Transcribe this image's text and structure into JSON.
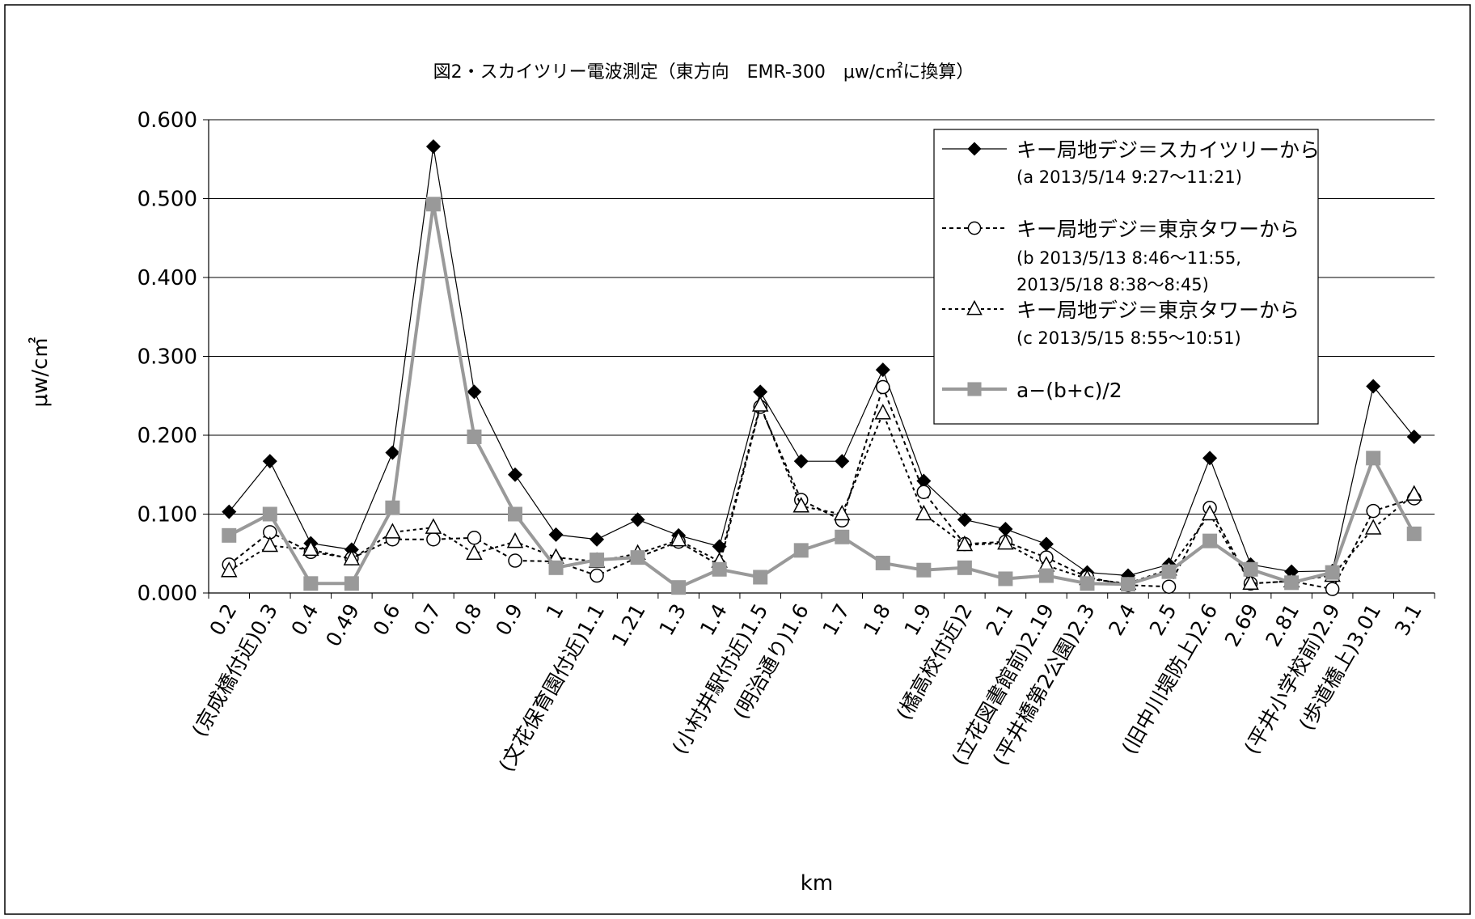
{
  "chart_data": {
    "type": "line",
    "title": "図2・スカイツリー電波測定（東方向　EMR-300　μw/c㎡に換算）",
    "xlabel": "km",
    "ylabel": "μw/c㎡",
    "ylim": [
      0,
      0.6
    ],
    "yticks": [
      "0.000",
      "0.100",
      "0.200",
      "0.300",
      "0.400",
      "0.500",
      "0.600"
    ],
    "grid": true,
    "legend_position": "top-right",
    "categories": [
      "0.2",
      "(京成橋付近)0.3",
      "0.4",
      "0.49",
      "0.6",
      "0.7",
      "0.8",
      "0.9",
      "1",
      "(文花保育園付近)1.1",
      "1.21",
      "1.3",
      "1.4",
      "(小村井駅付近)1.5",
      "(明治通り)1.6",
      "1.7",
      "1.8",
      "1.9",
      "(橘高校付近)2",
      "2.1",
      "(立花図書館前)2.19",
      "(平井橋第2公園)2.3",
      "2.4",
      "2.5",
      "(旧中川堤防上)2.6",
      "2.69",
      "2.81",
      "(平井小学校前)2.9",
      "(歩道橋上)3.01",
      "3.1"
    ],
    "series": [
      {
        "name": "キー局地デジ＝スカイツリーから",
        "note": "(a 2013/5/14 9:27～11:21)",
        "marker": "diamond",
        "color": "#000000",
        "values": [
          0.103,
          0.167,
          0.063,
          0.055,
          0.178,
          0.566,
          0.255,
          0.15,
          0.074,
          0.068,
          0.093,
          0.073,
          0.059,
          0.255,
          0.167,
          0.167,
          0.283,
          0.142,
          0.093,
          0.081,
          0.062,
          0.026,
          0.022,
          0.036,
          0.171,
          0.036,
          0.027,
          0.028,
          0.262,
          0.198
        ]
      },
      {
        "name": "キー局地デジ＝東京タワーから",
        "note": "(b 2013/5/13 8:46～11:55, 2013/5/18 8:38～8:45)",
        "marker": "circle",
        "color": "#000000",
        "values": [
          0.036,
          0.077,
          0.052,
          0.044,
          0.068,
          0.068,
          0.07,
          0.041,
          0.04,
          0.022,
          0.045,
          0.065,
          0.035,
          0.236,
          0.118,
          0.092,
          0.261,
          0.128,
          0.062,
          0.065,
          0.045,
          0.02,
          0.01,
          0.008,
          0.108,
          0.012,
          0.015,
          0.005,
          0.104,
          0.12
        ]
      },
      {
        "name": "キー局地デジ＝東京タワーから",
        "note": "(c 2013/5/15 8:55～10:51)",
        "marker": "triangle",
        "color": "#000000",
        "values": [
          0.028,
          0.06,
          0.055,
          0.043,
          0.077,
          0.083,
          0.05,
          0.065,
          0.045,
          0.04,
          0.05,
          0.067,
          0.04,
          0.238,
          0.11,
          0.1,
          0.228,
          0.1,
          0.061,
          0.063,
          0.035,
          0.018,
          0.012,
          0.03,
          0.1,
          0.012,
          0.015,
          0.022,
          0.082,
          0.125
        ]
      },
      {
        "name": "a−(b+c)/2",
        "marker": "square",
        "color": "#999999",
        "values": [
          0.073,
          0.1,
          0.012,
          0.012,
          0.108,
          0.493,
          0.198,
          0.1,
          0.032,
          0.042,
          0.045,
          0.007,
          0.03,
          0.02,
          0.054,
          0.071,
          0.038,
          0.029,
          0.032,
          0.018,
          0.022,
          0.012,
          0.011,
          0.027,
          0.066,
          0.03,
          0.013,
          0.026,
          0.171,
          0.075
        ]
      }
    ]
  }
}
